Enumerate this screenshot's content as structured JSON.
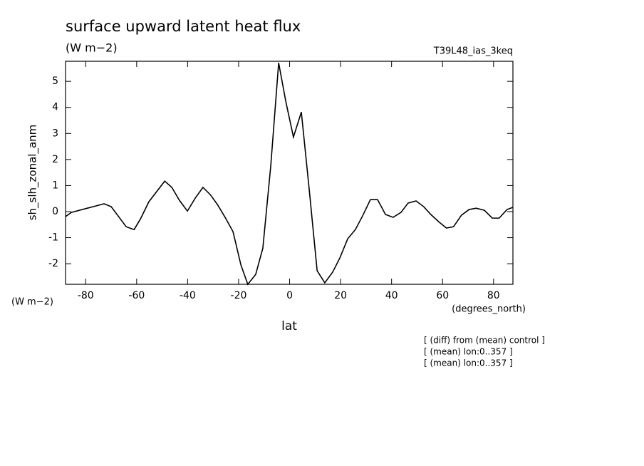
{
  "chart_data": {
    "type": "line",
    "title": "surface upward latent heat flux",
    "subtitle": "(W m−2)",
    "run_label": "T39L48_ias_3keq",
    "ylabel": "sh_slh_zonal_anm",
    "y_units_label": "(W m−2)",
    "xlabel": "lat",
    "x_units_label": "(degrees_north)",
    "notes": [
      "[ (diff) from (mean) control ]",
      "[ (mean) lon:0..357 ]",
      "[ (mean) lon:0..357 ]"
    ],
    "color": "#000000",
    "x": [
      -87.9,
      -85.6,
      -72.8,
      -70,
      -64.1,
      -61,
      -58.5,
      -55.2,
      -49,
      -46.2,
      -43.2,
      -40.1,
      -37,
      -34,
      -31.1,
      -28.3,
      -25.3,
      -22.2,
      -19.1,
      -16.4,
      -13.3,
      -10.5,
      -7.4,
      -4.3,
      -1.5,
      1.5,
      4.6,
      7.7,
      10.8,
      13.8,
      16.9,
      19.7,
      22.8,
      25.8,
      28.6,
      31.7,
      34.5,
      37.6,
      40.6,
      43.7,
      46.5,
      49.6,
      52.6,
      55.4,
      58.5,
      61.5,
      64.3,
      67.4,
      70.4,
      73.2,
      76.4,
      79.5,
      82.2,
      85.3,
      87.5
    ],
    "values": [
      -0.19,
      -0.03,
      0.3,
      0.19,
      -0.58,
      -0.69,
      -0.28,
      0.38,
      1.17,
      0.93,
      0.43,
      0.02,
      0.52,
      0.93,
      0.65,
      0.27,
      -0.22,
      -0.77,
      -2.05,
      -2.79,
      -2.41,
      -1.4,
      1.75,
      5.71,
      4.23,
      2.86,
      3.82,
      0.84,
      -2.27,
      -2.73,
      -2.32,
      -1.78,
      -1.04,
      -0.69,
      -0.17,
      0.46,
      0.46,
      -0.11,
      -0.22,
      -0.03,
      0.33,
      0.41,
      0.19,
      -0.11,
      -0.39,
      -0.63,
      -0.58,
      -0.14,
      0.08,
      0.13,
      0.05,
      -0.25,
      -0.25,
      0.08,
      0.16
    ],
    "xlim": [
      -87.9,
      87.6
    ],
    "ylim": [
      -2.79,
      5.77
    ],
    "xticks": [
      -80,
      -60,
      -40,
      -20,
      0,
      20,
      40,
      60,
      80
    ],
    "yticks": [
      -2,
      -1,
      0,
      1,
      2,
      3,
      4,
      5
    ]
  }
}
